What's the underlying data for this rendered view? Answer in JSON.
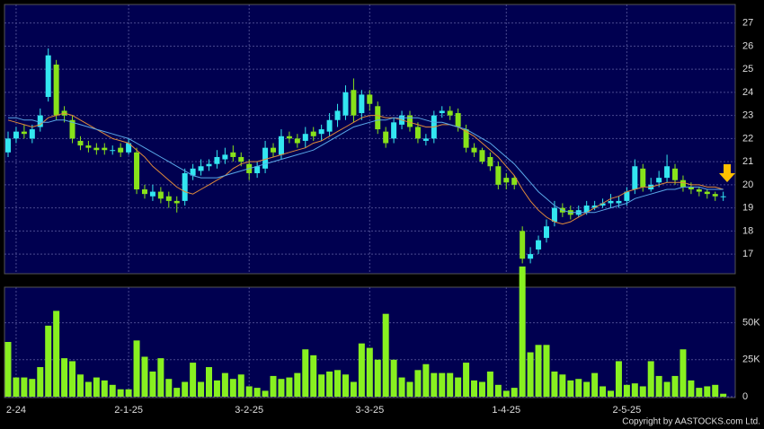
{
  "chart_data": {
    "type": "candlestick",
    "categories": [
      null,
      "2-24",
      null,
      null,
      null,
      null,
      null,
      null,
      null,
      null,
      null,
      null,
      null,
      null,
      null,
      "2-1-25",
      null,
      null,
      null,
      null,
      null,
      null,
      null,
      null,
      null,
      null,
      null,
      null,
      null,
      null,
      "3-2-25",
      null,
      null,
      null,
      null,
      null,
      null,
      null,
      null,
      null,
      null,
      null,
      null,
      null,
      null,
      "3-3-25",
      null,
      null,
      null,
      null,
      null,
      null,
      null,
      null,
      null,
      null,
      null,
      null,
      null,
      null,
      null,
      null,
      "1-4-25",
      null,
      null,
      null,
      null,
      null,
      null,
      null,
      null,
      null,
      null,
      null,
      null,
      null,
      null,
      "2-5-25",
      null,
      null,
      null,
      null,
      null,
      null,
      null,
      null,
      null,
      null,
      null,
      null
    ],
    "open": [
      21.4,
      22.0,
      22.3,
      22.0,
      22.5,
      23.8,
      25.2,
      23.2,
      22.8,
      21.9,
      21.7,
      21.6,
      21.6,
      21.5,
      21.6,
      21.4,
      21.4,
      19.8,
      19.5,
      19.7,
      19.5,
      19.3,
      19.3,
      20.4,
      20.6,
      20.8,
      20.9,
      21.1,
      21.4,
      21.2,
      20.9,
      20.5,
      20.7,
      21.6,
      21.3,
      22.1,
      22.0,
      21.9,
      22.3,
      22.2,
      22.3,
      22.8,
      23.0,
      24.1,
      23.1,
      23.9,
      23.4,
      22.3,
      22.0,
      22.6,
      23.0,
      22.5,
      21.9,
      22.0,
      23.1,
      23.2,
      23.1,
      22.4,
      21.6,
      21.5,
      21.2,
      20.8,
      20.3,
      20.3,
      18.0,
      16.8,
      17.2,
      17.7,
      18.4,
      19.0,
      18.9,
      18.7,
      18.8,
      19.0,
      19.1,
      19.2,
      19.2,
      19.3,
      19.8,
      20.7,
      19.8,
      20.1,
      20.3,
      20.7,
      20.2,
      19.9,
      19.8,
      19.7,
      19.6,
      19.5
    ],
    "high": [
      22.3,
      22.5,
      22.6,
      22.6,
      23.3,
      25.9,
      25.4,
      23.4,
      23.0,
      22.1,
      21.9,
      21.8,
      21.8,
      21.7,
      21.8,
      22.0,
      21.6,
      20.0,
      20.0,
      19.9,
      19.7,
      19.5,
      20.7,
      20.9,
      21.1,
      21.1,
      21.5,
      21.6,
      21.7,
      21.4,
      21.1,
      21.0,
      21.9,
      21.8,
      22.4,
      22.3,
      22.2,
      22.5,
      22.5,
      22.6,
      23.1,
      23.5,
      24.3,
      24.6,
      24.1,
      24.1,
      23.6,
      22.5,
      22.9,
      23.2,
      23.2,
      22.7,
      22.2,
      23.2,
      23.4,
      23.4,
      23.3,
      22.6,
      21.8,
      21.6,
      21.4,
      21.0,
      20.5,
      20.4,
      18.2,
      17.3,
      17.8,
      18.5,
      19.3,
      19.2,
      19.1,
      19.1,
      19.3,
      19.3,
      19.4,
      19.6,
      19.5,
      19.9,
      21.1,
      20.9,
      20.3,
      20.6,
      21.3,
      20.9,
      20.4,
      20.1,
      19.9,
      19.8,
      19.7,
      19.7
    ],
    "low": [
      21.2,
      21.8,
      22.0,
      21.8,
      22.3,
      23.6,
      22.8,
      22.7,
      21.8,
      21.5,
      21.4,
      21.3,
      21.3,
      21.3,
      21.2,
      21.3,
      19.6,
      19.4,
      19.3,
      19.2,
      19.0,
      18.8,
      19.1,
      20.2,
      20.4,
      20.6,
      20.7,
      20.9,
      21.0,
      20.8,
      20.2,
      20.3,
      20.5,
      21.2,
      21.1,
      21.8,
      21.6,
      21.6,
      21.9,
      21.9,
      22.1,
      22.5,
      22.8,
      22.7,
      22.8,
      23.2,
      22.2,
      21.6,
      21.8,
      22.4,
      22.3,
      21.8,
      21.7,
      21.8,
      22.9,
      22.8,
      22.3,
      21.4,
      21.2,
      20.9,
      20.6,
      19.8,
      19.8,
      19.8,
      16.6,
      16.6,
      17.0,
      17.5,
      18.2,
      18.6,
      18.5,
      18.6,
      18.7,
      18.9,
      19.0,
      19.0,
      19.0,
      19.1,
      19.6,
      19.7,
      19.7,
      19.9,
      20.1,
      20.0,
      19.7,
      19.6,
      19.5,
      19.4,
      19.3,
      19.3
    ],
    "close": [
      22.0,
      22.3,
      22.2,
      22.4,
      23.0,
      25.6,
      23.0,
      23.0,
      22.0,
      21.7,
      21.6,
      21.5,
      21.5,
      21.5,
      21.4,
      21.8,
      19.8,
      19.6,
      19.7,
      19.4,
      19.3,
      19.2,
      20.5,
      20.7,
      20.8,
      20.9,
      21.2,
      21.3,
      21.2,
      21.0,
      20.5,
      20.8,
      21.6,
      21.4,
      22.1,
      22.0,
      21.8,
      22.2,
      22.1,
      22.4,
      22.8,
      23.2,
      24.0,
      23.0,
      23.9,
      23.5,
      22.4,
      21.8,
      22.7,
      23.0,
      22.5,
      22.0,
      22.0,
      23.0,
      23.2,
      23.0,
      22.5,
      21.6,
      21.4,
      21.0,
      20.8,
      20.0,
      20.1,
      20.0,
      16.8,
      17.0,
      17.6,
      18.2,
      19.0,
      18.8,
      18.7,
      18.9,
      19.1,
      19.1,
      19.2,
      19.3,
      19.3,
      19.7,
      20.8,
      19.9,
      20.0,
      20.3,
      20.8,
      20.2,
      19.9,
      19.8,
      19.7,
      19.6,
      19.5,
      19.5
    ],
    "up_color": "#33e6f0",
    "down_color": "#88e21a",
    "ylim": [
      16.15,
      27.8
    ],
    "yticks": [
      17,
      18,
      19,
      20,
      21,
      22,
      23,
      24,
      25,
      26,
      27
    ],
    "grid": true,
    "lines": [
      {
        "color": "#e08a3a",
        "values": [
          22.8,
          22.7,
          22.6,
          22.5,
          22.6,
          22.9,
          23.0,
          23.1,
          23.0,
          22.8,
          22.6,
          22.4,
          22.2,
          22.0,
          21.9,
          21.8,
          21.5,
          21.2,
          20.8,
          20.5,
          20.2,
          19.9,
          19.7,
          19.6,
          19.8,
          20.0,
          20.2,
          20.4,
          20.7,
          20.9,
          21.0,
          21.0,
          21.1,
          21.2,
          21.3,
          21.4,
          21.5,
          21.6,
          21.8,
          21.9,
          22.1,
          22.3,
          22.5,
          22.7,
          22.9,
          23.0,
          23.0,
          22.9,
          22.9,
          22.8,
          22.7,
          22.6,
          22.5,
          22.5,
          22.6,
          22.6,
          22.5,
          22.3,
          22.1,
          21.8,
          21.5,
          21.2,
          20.8,
          20.4,
          19.8,
          19.3,
          18.9,
          18.6,
          18.4,
          18.3,
          18.4,
          18.6,
          18.8,
          19.0,
          19.2,
          19.4,
          19.5,
          19.7,
          19.8,
          19.9,
          19.9,
          20.0,
          20.1,
          20.1,
          20.1,
          20.0,
          20.0,
          19.9,
          19.9,
          19.8
        ]
      },
      {
        "color": "#5aa8e8",
        "values": [
          22.9,
          22.9,
          22.8,
          22.8,
          22.7,
          22.7,
          22.8,
          22.8,
          22.7,
          22.6,
          22.5,
          22.4,
          22.3,
          22.2,
          22.1,
          22.0,
          21.8,
          21.6,
          21.4,
          21.2,
          21.0,
          20.8,
          20.6,
          20.4,
          20.3,
          20.3,
          20.3,
          20.4,
          20.5,
          20.6,
          20.7,
          20.8,
          20.9,
          21.0,
          21.1,
          21.2,
          21.3,
          21.4,
          21.5,
          21.7,
          21.9,
          22.1,
          22.3,
          22.5,
          22.6,
          22.7,
          22.8,
          22.8,
          22.9,
          22.9,
          22.9,
          22.9,
          22.8,
          22.7,
          22.7,
          22.6,
          22.5,
          22.4,
          22.2,
          22.0,
          21.8,
          21.5,
          21.2,
          20.9,
          20.5,
          20.1,
          19.7,
          19.4,
          19.1,
          18.9,
          18.8,
          18.8,
          18.8,
          18.8,
          18.9,
          19.0,
          19.1,
          19.2,
          19.4,
          19.5,
          19.6,
          19.7,
          19.8,
          19.8,
          19.9,
          19.9,
          19.9,
          19.8,
          19.8,
          19.8
        ]
      }
    ],
    "volume": {
      "color": "#88f020",
      "values": [
        37,
        13,
        13,
        12,
        20,
        48,
        58,
        26,
        24,
        15,
        10,
        13,
        11,
        8,
        5,
        5,
        38,
        27,
        17,
        26,
        12,
        6,
        10,
        23,
        10,
        20,
        11,
        16,
        12,
        15,
        7,
        6,
        4,
        14,
        12,
        13,
        16,
        32,
        28,
        15,
        17,
        18,
        15,
        10,
        36,
        33,
        25,
        56,
        25,
        13,
        10,
        18,
        22,
        16,
        16,
        16,
        13,
        23,
        11,
        10,
        17,
        8,
        4,
        6,
        88,
        30,
        35,
        35,
        17,
        15,
        11,
        12,
        10,
        16,
        7,
        4,
        24,
        8,
        9,
        7,
        24,
        14,
        10,
        14,
        32,
        11,
        6,
        7,
        8,
        2
      ],
      "ylim": [
        0,
        74
      ],
      "yticks": [
        0,
        {
          "value": 25,
          "label": "25K"
        },
        {
          "value": 50,
          "label": "50K"
        }
      ]
    }
  },
  "footer": "Copyright by AASTOCKS.com Ltd."
}
